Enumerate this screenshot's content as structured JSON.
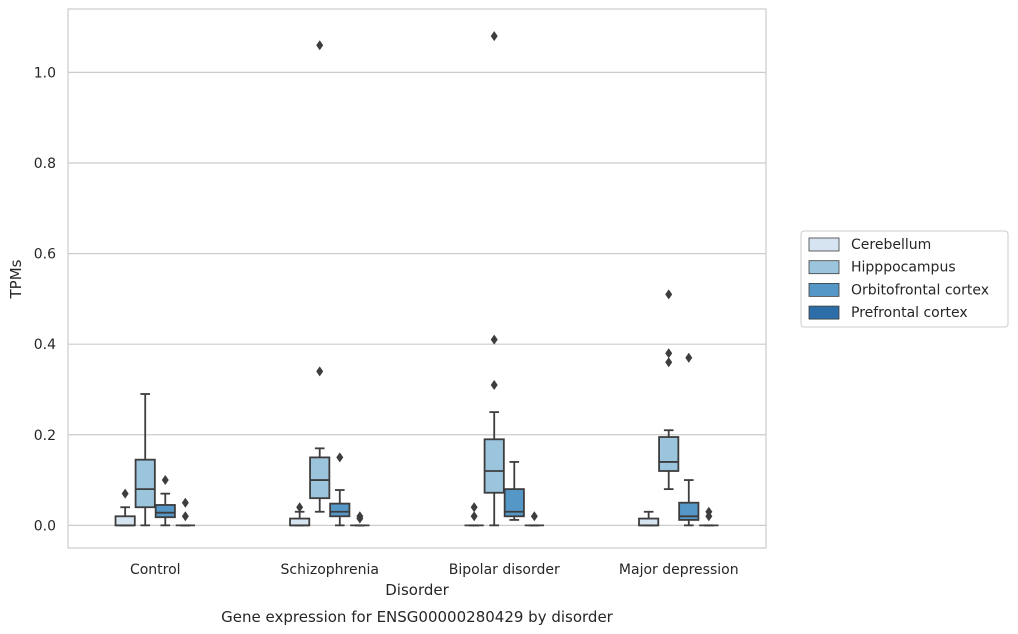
{
  "chart_data": {
    "type": "box",
    "xlabel": "Disorder",
    "ylabel": "TPMs",
    "caption": "Gene expression for ENSG00000280429 by disorder",
    "ylim": [
      -0.05,
      1.14
    ],
    "yticks": [
      "0.0",
      "0.2",
      "0.4",
      "0.6",
      "0.8",
      "1.0"
    ],
    "grid": "horizontal",
    "legend_position": "right",
    "categories": [
      "Control",
      "Schizophrenia",
      "Bipolar disorder",
      "Major depression"
    ],
    "series": [
      {
        "name": "Cerebellum",
        "color": "#d6e4f2",
        "boxes": [
          {
            "q1": 0,
            "median": 0,
            "q3": 0.02,
            "wlo": 0,
            "whi": 0.04,
            "outliers": [
              0.07
            ]
          },
          {
            "q1": 0,
            "median": 0,
            "q3": 0.015,
            "wlo": 0,
            "whi": 0.03,
            "outliers": [
              0.04
            ]
          },
          {
            "q1": 0,
            "median": 0,
            "q3": 0,
            "wlo": 0,
            "whi": 0,
            "outliers": [
              0.02,
              0.04
            ]
          },
          {
            "q1": 0,
            "median": 0,
            "q3": 0.015,
            "wlo": 0,
            "whi": 0.03,
            "outliers": []
          }
        ]
      },
      {
        "name": "Hipppocampus",
        "color": "#9bc4dd",
        "boxes": [
          {
            "q1": 0.04,
            "median": 0.08,
            "q3": 0.145,
            "wlo": 0,
            "whi": 0.29,
            "outliers": []
          },
          {
            "q1": 0.06,
            "median": 0.1,
            "q3": 0.15,
            "wlo": 0.03,
            "whi": 0.17,
            "outliers": [
              0.34,
              1.06
            ]
          },
          {
            "q1": 0.072,
            "median": 0.12,
            "q3": 0.19,
            "wlo": 0,
            "whi": 0.25,
            "outliers": [
              0.31,
              0.41,
              1.08
            ]
          },
          {
            "q1": 0.12,
            "median": 0.14,
            "q3": 0.195,
            "wlo": 0.08,
            "whi": 0.21,
            "outliers": [
              0.36,
              0.38,
              0.51
            ]
          }
        ]
      },
      {
        "name": "Orbitofrontal cortex",
        "color": "#5598c8",
        "boxes": [
          {
            "q1": 0.018,
            "median": 0.028,
            "q3": 0.045,
            "wlo": 0,
            "whi": 0.07,
            "outliers": [
              0.1
            ]
          },
          {
            "q1": 0.02,
            "median": 0.03,
            "q3": 0.048,
            "wlo": 0,
            "whi": 0.078,
            "outliers": [
              0.15
            ]
          },
          {
            "q1": 0.02,
            "median": 0.03,
            "q3": 0.08,
            "wlo": 0.012,
            "whi": 0.14,
            "outliers": []
          },
          {
            "q1": 0.012,
            "median": 0.02,
            "q3": 0.05,
            "wlo": 0,
            "whi": 0.1,
            "outliers": [
              0.37
            ]
          }
        ]
      },
      {
        "name": "Prefrontal cortex",
        "color": "#2e6ea8",
        "boxes": [
          {
            "q1": 0,
            "median": 0,
            "q3": 0,
            "wlo": 0,
            "whi": 0,
            "outliers": [
              0.02,
              0.05
            ]
          },
          {
            "q1": 0,
            "median": 0,
            "q3": 0,
            "wlo": 0,
            "whi": 0,
            "outliers": [
              0.015,
              0.02
            ]
          },
          {
            "q1": 0,
            "median": 0,
            "q3": 0,
            "wlo": 0,
            "whi": 0,
            "outliers": [
              0.02
            ]
          },
          {
            "q1": 0,
            "median": 0,
            "q3": 0,
            "wlo": 0,
            "whi": 0,
            "outliers": [
              0.02,
              0.03
            ]
          }
        ]
      }
    ]
  }
}
